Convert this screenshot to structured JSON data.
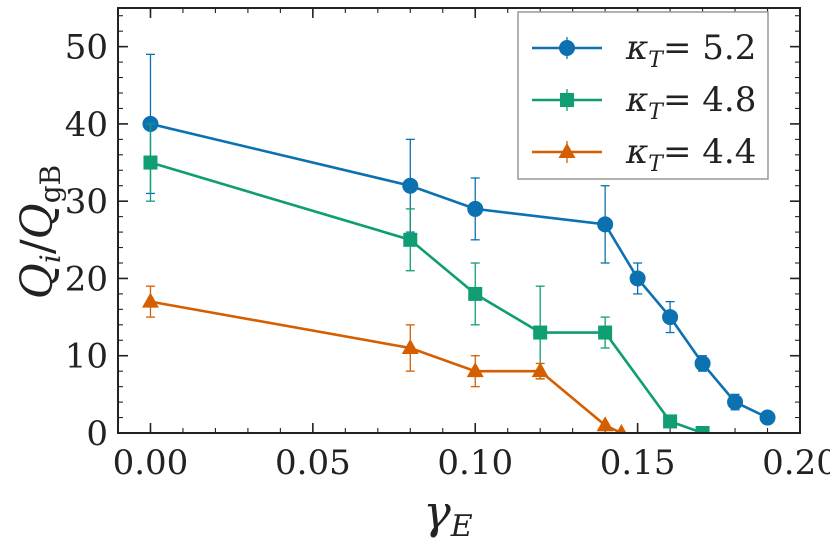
{
  "chart_data": {
    "type": "line",
    "xlabel": "γ",
    "xlabel_sub": "E",
    "ylabel": "Q",
    "ylabel_sub": "i",
    "ylabel_denom": "Q",
    "ylabel_denom_sub": "gB",
    "xlim": [
      -0.01,
      0.2
    ],
    "ylim": [
      0,
      55
    ],
    "xticks": [
      0.0,
      0.05,
      0.1,
      0.15,
      0.2
    ],
    "xtick_labels": [
      "0.00",
      "0.05",
      "0.10",
      "0.15",
      "0.20"
    ],
    "yticks": [
      0,
      10,
      20,
      30,
      40,
      50
    ],
    "ytick_labels": [
      "0",
      "10",
      "20",
      "30",
      "40",
      "50"
    ],
    "legend_position": "top-right",
    "series": [
      {
        "name": "κT = 5.2",
        "legend_kappa": "κ",
        "legend_sub": "T",
        "legend_eq": "= 5.2",
        "color": "#0c71b0",
        "marker": "circle",
        "x": [
          0.0,
          0.08,
          0.1,
          0.14,
          0.15,
          0.16,
          0.17,
          0.18,
          0.19
        ],
        "y": [
          40,
          32,
          29,
          27,
          20,
          15,
          9,
          4,
          2
        ],
        "err": [
          9,
          6,
          4,
          5,
          2,
          2,
          1,
          1,
          0
        ]
      },
      {
        "name": "κT = 4.8",
        "legend_kappa": "κ",
        "legend_sub": "T",
        "legend_eq": "= 4.8",
        "color": "#0f9e73",
        "marker": "square",
        "x": [
          0.0,
          0.08,
          0.1,
          0.12,
          0.14,
          0.16,
          0.17
        ],
        "y": [
          35,
          25,
          18,
          13,
          13,
          1.5,
          0
        ],
        "err": [
          5,
          4,
          4,
          6,
          2,
          0,
          0
        ]
      },
      {
        "name": "κT = 4.4",
        "legend_kappa": "κ",
        "legend_sub": "T",
        "legend_eq": "= 4.4",
        "color": "#d55e00",
        "marker": "triangle",
        "x": [
          0.0,
          0.08,
          0.1,
          0.12,
          0.14,
          0.145
        ],
        "y": [
          17,
          11,
          8,
          8,
          1,
          0
        ],
        "err": [
          2,
          3,
          2,
          1,
          0,
          0
        ]
      }
    ]
  }
}
